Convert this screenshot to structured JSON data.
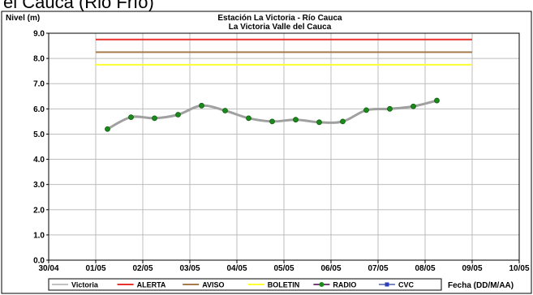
{
  "header": {
    "cut_title": "el Cauca (Rio Frío)"
  },
  "chart_data": {
    "type": "line",
    "title": "Estación La Victoria - Río Cauca",
    "subtitle": "La Victoria Valle del Cauca",
    "ylabel": "Nivel (m)",
    "xlabel": "Fecha (DD/M/AA)",
    "ylim": [
      0,
      9
    ],
    "yticks": [
      "0.0",
      "1.0",
      "2.0",
      "3.0",
      "4.0",
      "5.0",
      "6.0",
      "7.0",
      "8.0",
      "9.0"
    ],
    "xlim": [
      0,
      10
    ],
    "xticks": [
      "30/04",
      "01/05",
      "02/05",
      "03/05",
      "04/05",
      "05/05",
      "06/05",
      "07/05",
      "08/05",
      "09/05",
      "10/05"
    ],
    "grid": true,
    "legend_position": "bottom",
    "thresholds": [
      {
        "name": "ALERTA",
        "value": 8.75,
        "x_start": 1.0,
        "x_end": 9.0,
        "color": "#e8312a"
      },
      {
        "name": "AVISO",
        "value": 8.25,
        "x_start": 1.0,
        "x_end": 9.0,
        "color": "#a87a4a"
      },
      {
        "name": "BOLETIN",
        "value": 7.75,
        "x_start": 1.0,
        "x_end": 9.0,
        "color": "#ffff33"
      }
    ],
    "series": [
      {
        "name": "Victoria",
        "color": "#a0a0a0",
        "x": [
          1.25,
          1.75,
          2.25,
          2.75,
          3.25,
          3.75,
          4.25,
          4.75,
          5.25,
          5.75,
          6.25,
          6.75,
          7.25,
          7.75,
          8.25
        ],
        "y": [
          5.2,
          5.67,
          5.63,
          5.77,
          6.13,
          5.93,
          5.63,
          5.5,
          5.57,
          5.47,
          5.5,
          5.95,
          6.0,
          6.1,
          6.33
        ]
      },
      {
        "name": "RADIO",
        "color": "#1a8a1a",
        "marker": "circle",
        "x": [
          1.25,
          1.75,
          2.25,
          2.75,
          3.25,
          3.75,
          4.25,
          4.75,
          5.25,
          5.75,
          6.25,
          6.75,
          7.25,
          7.75,
          8.25
        ],
        "y": [
          5.2,
          5.67,
          5.63,
          5.77,
          6.13,
          5.93,
          5.63,
          5.5,
          5.57,
          5.47,
          5.5,
          5.95,
          6.0,
          6.1,
          6.33
        ]
      }
    ],
    "legend": [
      {
        "label": "Victoria",
        "color": "#c0c0c0",
        "marker": "none"
      },
      {
        "label": "ALERTA",
        "color": "#e8312a",
        "marker": "none"
      },
      {
        "label": "AVISO",
        "color": "#a87a4a",
        "marker": "none"
      },
      {
        "label": "BOLETIN",
        "color": "#ffff33",
        "marker": "none"
      },
      {
        "label": "RADIO",
        "color": "#7a3b7a",
        "marker": "circle-green"
      },
      {
        "label": "CVC",
        "color": "#7a8ac0",
        "marker": "square-blue"
      }
    ]
  }
}
